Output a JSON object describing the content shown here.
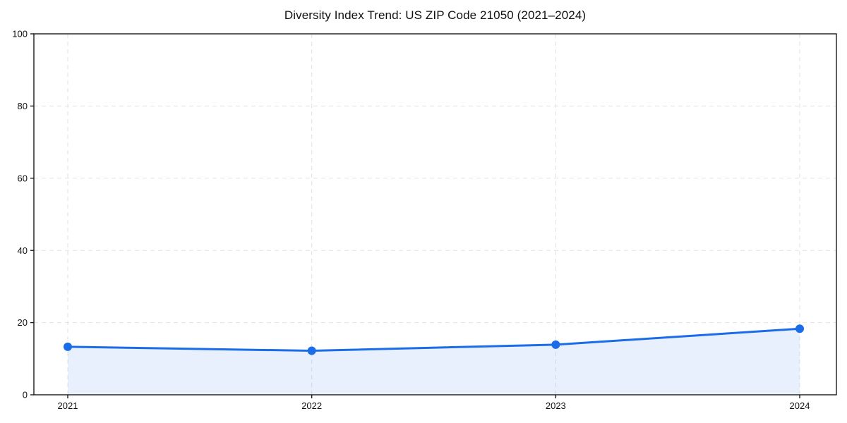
{
  "chart_data": {
    "type": "line",
    "title": "Diversity Index Trend: US ZIP Code 21050 (2021–2024)",
    "x": [
      "2021",
      "2022",
      "2023",
      "2024"
    ],
    "series": [
      {
        "name": "Diversity Index",
        "values": [
          13.3,
          12.2,
          13.9,
          18.3
        ]
      }
    ],
    "xlabel": "",
    "ylabel": "",
    "ylim": [
      0,
      100
    ],
    "yticks": [
      0,
      20,
      40,
      60,
      80,
      100
    ],
    "grid": true,
    "grid_style": "dashed",
    "legend": "none",
    "colors": {
      "line": "#1a6ce8",
      "marker": "#1a6ce8",
      "area_fill_rgba": "rgba(26,108,232,0.10)",
      "gridline": "#e2e2e2",
      "spine": "#1a1a1a",
      "text": "#111111"
    }
  }
}
